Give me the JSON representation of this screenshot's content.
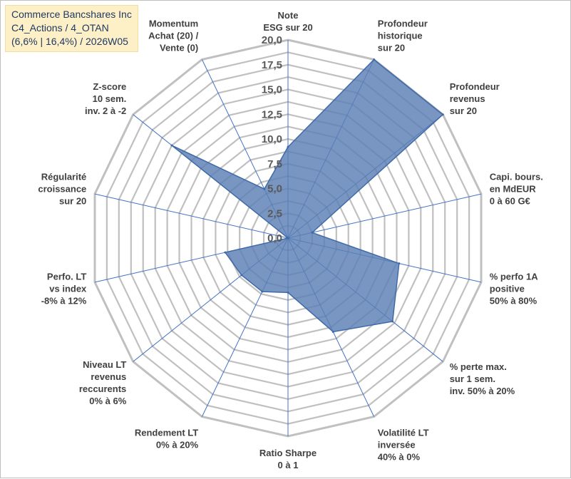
{
  "title_lines": [
    "Commerce Bancshares Inc",
    "C4_Actions / 4_OTAN",
    "(6,6% | 16,4%) / 2026W05"
  ],
  "colors": {
    "grid": "#c0c0c0",
    "spoke": "#4472c4",
    "fill": "#5b7fb5",
    "stroke": "#3f6aa8",
    "title_bg": "#fdf0c6",
    "title_text": "#1f3864"
  },
  "chart_data": {
    "type": "radar",
    "rlim": [
      0,
      20
    ],
    "ticks": [
      "0,0",
      "2,5",
      "5,0",
      "7,5",
      "10,0",
      "12,5",
      "15,0",
      "17,5",
      "20,0"
    ],
    "tick_values": [
      0,
      2.5,
      5,
      7.5,
      10,
      12.5,
      15,
      17.5,
      20
    ],
    "grid": true,
    "axes": [
      [
        "Note",
        "ESG sur 20"
      ],
      [
        "Profondeur",
        "historique",
        "sur 20"
      ],
      [
        "Profondeur",
        "revenus",
        "sur 20"
      ],
      [
        "Capi. bours.",
        "en MdEUR",
        "0 à 60 G€"
      ],
      [
        "% perfo 1A",
        "positive",
        "50% à 80%"
      ],
      [
        "% perte max.",
        "sur 1 sem.",
        "inv. 50% à 20%"
      ],
      [
        "Volatilité LT",
        "inversée",
        "40% à 0%"
      ],
      [
        "Ratio Sharpe",
        "0 à 1"
      ],
      [
        "Rendement LT",
        "0% à 20%"
      ],
      [
        "Niveau LT",
        "revenus",
        "reccurents",
        "0% à 6%"
      ],
      [
        "Perfo. LT",
        "vs index",
        "-8% à 12%"
      ],
      [
        "Régularité",
        "croissance",
        "sur 20"
      ],
      [
        "Z-score",
        "10 sem.",
        "inv. 2 à -2"
      ],
      [
        "Momentum",
        "Achat (20) /",
        "Vente (0)"
      ]
    ],
    "values": [
      9.2,
      20.0,
      20.0,
      2.5,
      11.5,
      13.5,
      10.5,
      5.5,
      6.0,
      6.0,
      6.5,
      0,
      15.0,
      5.5
    ]
  }
}
